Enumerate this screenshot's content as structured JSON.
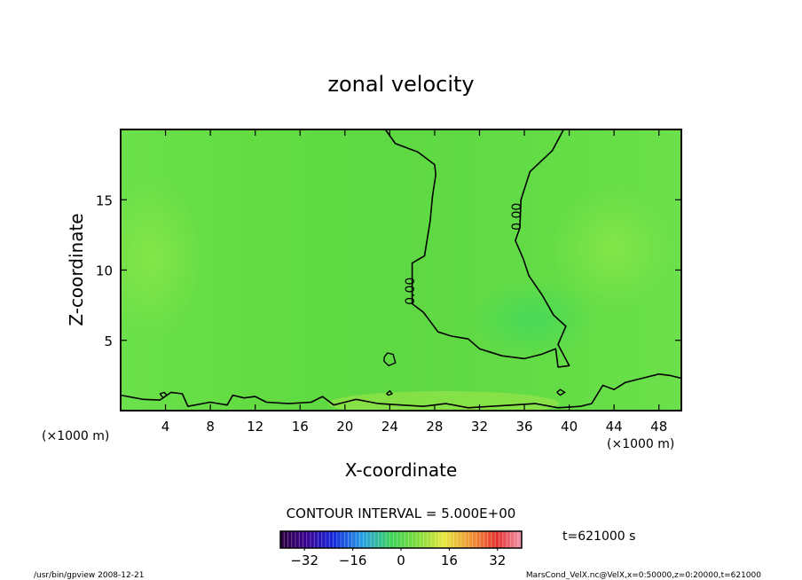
{
  "chart_data": {
    "type": "heatmap",
    "title": "zonal velocity",
    "xlabel": "X-coordinate",
    "ylabel": "Z-coordinate",
    "x_unit": "(×1000 m)",
    "y_unit": "(×1000 m)",
    "xlim": [
      0,
      50
    ],
    "ylim": [
      0,
      20
    ],
    "x_ticks": [
      4,
      8,
      12,
      16,
      20,
      24,
      28,
      32,
      36,
      40,
      44,
      48
    ],
    "y_ticks": [
      5,
      10,
      15
    ],
    "contour_interval_label": "CONTOUR INTERVAL = 5.000E+00",
    "time_label": "t=621000 s",
    "colorbar": {
      "min": -40,
      "max": 40,
      "ticks": [
        -32,
        -16,
        0,
        16,
        32
      ]
    },
    "field_value_approx": 0,
    "contour_labels": [
      {
        "text": "0.00",
        "x": 26.2,
        "y": 8.5
      },
      {
        "text": "0.00",
        "x": 35.7,
        "y": 13.8
      }
    ],
    "zero_contours": [
      [
        [
          23.6,
          20
        ],
        [
          24.5,
          19
        ],
        [
          26.5,
          18.4
        ],
        [
          28,
          17.5
        ],
        [
          28.1,
          16.8
        ],
        [
          27.8,
          15.2
        ],
        [
          27.6,
          13.5
        ],
        [
          27.1,
          11
        ],
        [
          26,
          10.5
        ],
        [
          26,
          7.6
        ],
        [
          27,
          7
        ],
        [
          28.3,
          5.6
        ],
        [
          29.5,
          5.3
        ],
        [
          31,
          5.1
        ],
        [
          32,
          4.4
        ],
        [
          34,
          3.9
        ],
        [
          36,
          3.7
        ],
        [
          37.5,
          4
        ],
        [
          38.8,
          4.4
        ],
        [
          39,
          3.1
        ],
        [
          40,
          3.2
        ],
        [
          39,
          4.7
        ],
        [
          39.7,
          6
        ],
        [
          38.6,
          6.8
        ],
        [
          37.6,
          8.2
        ],
        [
          36.4,
          9.6
        ],
        [
          35.9,
          10.8
        ],
        [
          35.2,
          12.1
        ],
        [
          35.6,
          13
        ],
        [
          35.7,
          15
        ],
        [
          36.5,
          17
        ],
        [
          38.5,
          18.5
        ],
        [
          39.5,
          20
        ]
      ],
      [
        [
          0,
          1.1
        ],
        [
          2,
          0.8
        ],
        [
          3.5,
          0.75
        ],
        [
          4.5,
          1.3
        ],
        [
          5.5,
          1.2
        ],
        [
          6,
          0.3
        ],
        [
          8,
          0.6
        ],
        [
          9.5,
          0.4
        ],
        [
          10,
          1.1
        ],
        [
          11,
          0.9
        ],
        [
          12,
          1.0
        ],
        [
          13,
          0.6
        ],
        [
          15,
          0.5
        ],
        [
          17,
          0.6
        ],
        [
          18,
          1.0
        ],
        [
          19,
          0.4
        ],
        [
          20,
          0.6
        ],
        [
          21,
          0.8
        ],
        [
          23,
          0.5
        ],
        [
          25,
          0.4
        ],
        [
          27,
          0.3
        ],
        [
          29,
          0.5
        ],
        [
          31,
          0.2
        ],
        [
          33,
          0.3
        ],
        [
          35,
          0.4
        ],
        [
          37,
          0.5
        ],
        [
          39,
          0.2
        ],
        [
          41,
          0.3
        ],
        [
          42,
          0.5
        ],
        [
          43,
          1.8
        ],
        [
          44,
          1.5
        ],
        [
          45,
          2.0
        ],
        [
          46,
          2.2
        ],
        [
          48,
          2.6
        ],
        [
          49,
          2.5
        ],
        [
          50,
          2.3
        ]
      ]
    ],
    "small_contours": [
      [
        [
          23.5,
          3.8
        ],
        [
          23.8,
          4.1
        ],
        [
          24.3,
          4.0
        ],
        [
          24.5,
          3.4
        ],
        [
          23.9,
          3.2
        ],
        [
          23.5,
          3.5
        ],
        [
          23.5,
          3.8
        ]
      ],
      [
        [
          3.5,
          1.2
        ],
        [
          3.9,
          1.3
        ],
        [
          4.1,
          1.1
        ],
        [
          3.8,
          0.9
        ],
        [
          3.5,
          1.2
        ]
      ],
      [
        [
          38.9,
          1.3
        ],
        [
          39.2,
          1.5
        ],
        [
          39.6,
          1.3
        ],
        [
          39.2,
          1.1
        ],
        [
          38.9,
          1.3
        ]
      ],
      [
        [
          23.7,
          1.2
        ],
        [
          24,
          1.4
        ],
        [
          24.2,
          1.2
        ],
        [
          23.9,
          1.1
        ],
        [
          23.7,
          1.2
        ]
      ]
    ]
  },
  "footer": {
    "left": "/usr/bin/gpview   2008-12-21",
    "right": "MarsCond_VelX.nc@VelX,x=0:50000,z=0:20000,t=621000"
  }
}
